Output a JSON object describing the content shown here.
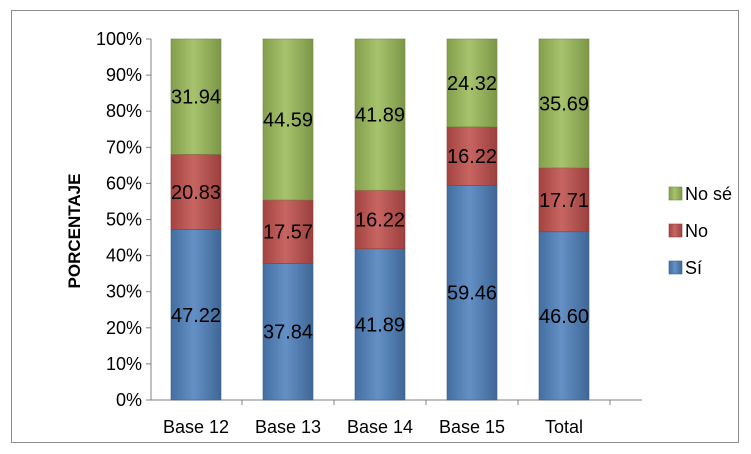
{
  "chart_data": {
    "type": "bar",
    "stacked": true,
    "percent_stacked": true,
    "categories": [
      "Base 12",
      "Base 13",
      "Base 14",
      "Base 15",
      "Total"
    ],
    "series": [
      {
        "name": "Sí",
        "color": "#4f81bd",
        "values": [
          47.22,
          37.84,
          41.89,
          59.46,
          46.6
        ],
        "labels": [
          "47.22",
          "37.84",
          "41.89",
          "59.46",
          "46.60"
        ]
      },
      {
        "name": "No",
        "color": "#c0504d",
        "values": [
          20.83,
          17.57,
          16.22,
          16.22,
          17.71
        ],
        "labels": [
          "20.83",
          "17.57",
          "16.22",
          "16.22",
          "17.71"
        ]
      },
      {
        "name": "No sé",
        "color": "#9bbb59",
        "values": [
          31.94,
          44.59,
          41.89,
          24.32,
          35.69
        ],
        "labels": [
          "31.94",
          "44.59",
          "41.89",
          "24.32",
          "35.69"
        ]
      }
    ],
    "ylabel": "PORCENTAJE",
    "xlabel": "",
    "ylim": [
      0,
      100
    ],
    "yticks": [
      "0%",
      "10%",
      "20%",
      "30%",
      "40%",
      "50%",
      "60%",
      "70%",
      "80%",
      "90%",
      "100%"
    ],
    "grid": false,
    "legend": {
      "placement": "right",
      "order": [
        "No sé",
        "No",
        "Sí"
      ]
    }
  }
}
